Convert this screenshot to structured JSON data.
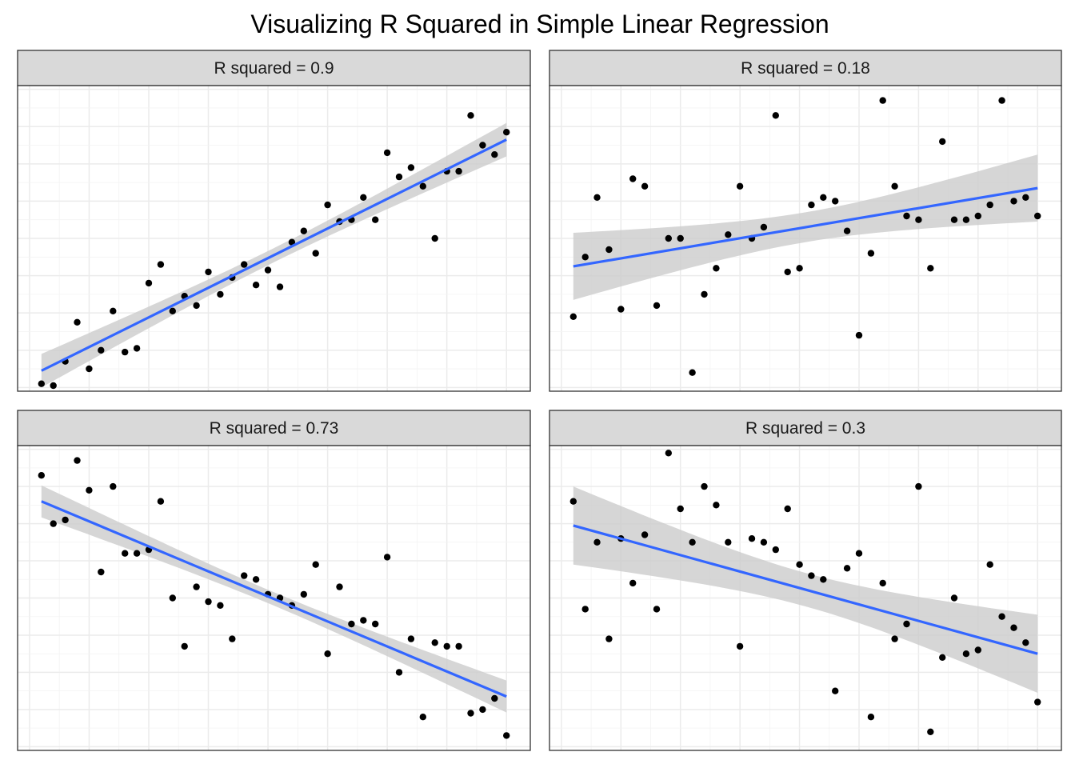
{
  "title": "Visualizing R Squared in Simple Linear Regression",
  "colors": {
    "point": "#000000",
    "line": "#3366ff",
    "ribbon": "#cccccc",
    "strip": "#d9d9d9",
    "grid": "#ebebeb",
    "border": "#333333"
  },
  "chart_data": [
    {
      "type": "scatter",
      "title": "R squared = 0.9",
      "xlabel": "",
      "ylabel": "",
      "xlim": [
        -1,
        42
      ],
      "ylim": [
        -1,
        81
      ],
      "grid": true,
      "show_axis_ticks": false,
      "x": [
        1,
        2,
        3,
        4,
        5,
        6,
        7,
        8,
        9,
        10,
        11,
        12,
        13,
        14,
        15,
        16,
        17,
        18,
        19,
        20,
        21,
        22,
        23,
        24,
        25,
        26,
        27,
        28,
        29,
        30,
        31,
        32,
        33,
        34,
        35,
        36,
        37,
        38,
        39,
        40
      ],
      "y": [
        1,
        0.5,
        7,
        17.5,
        5,
        10,
        20.5,
        9.5,
        10.5,
        28,
        33,
        20.5,
        24.5,
        22,
        31,
        25,
        29.5,
        33,
        27.5,
        31.5,
        27,
        39,
        42,
        36,
        49,
        44.5,
        45,
        51,
        45,
        63,
        56.5,
        59,
        54,
        40,
        58,
        58,
        73,
        65,
        62.5,
        68.5
      ],
      "fit": {
        "x": [
          1,
          40
        ],
        "y": [
          4.5,
          66.5
        ],
        "ci_halfwidth": [
          4.5,
          4.5
        ],
        "ci_halfwidth_mid": 1.9
      }
    },
    {
      "type": "scatter",
      "title": "R squared = 0.18",
      "xlabel": "",
      "ylabel": "",
      "xlim": [
        -1,
        42
      ],
      "ylim": [
        -1,
        81
      ],
      "grid": true,
      "show_axis_ticks": false,
      "x": [
        1,
        2,
        3,
        4,
        5,
        6,
        7,
        8,
        9,
        10,
        11,
        12,
        13,
        14,
        15,
        16,
        17,
        18,
        19,
        20,
        21,
        22,
        23,
        24,
        25,
        26,
        27,
        28,
        29,
        30,
        31,
        32,
        33,
        34,
        35,
        36,
        37,
        38,
        39,
        40
      ],
      "y": [
        19,
        35,
        51,
        37,
        21,
        56,
        54,
        22,
        40,
        40,
        4,
        25,
        32,
        41,
        54,
        40,
        43,
        73,
        31,
        32,
        49,
        51,
        50,
        42,
        14,
        36,
        77,
        54,
        46,
        45,
        32,
        66,
        45,
        45,
        46,
        49,
        77,
        50,
        51,
        46
      ],
      "fit": {
        "x": [
          1,
          40
        ],
        "y": [
          32.5,
          53.5
        ],
        "ci_halfwidth": [
          9,
          9
        ],
        "ci_halfwidth_mid": 4
      }
    },
    {
      "type": "scatter",
      "title": "R squared = 0.73",
      "xlabel": "",
      "ylabel": "",
      "xlim": [
        -1,
        42
      ],
      "ylim": [
        -1,
        81
      ],
      "grid": true,
      "show_axis_ticks": false,
      "x": [
        1,
        2,
        3,
        4,
        5,
        6,
        7,
        8,
        9,
        10,
        11,
        12,
        13,
        14,
        15,
        16,
        17,
        18,
        19,
        20,
        21,
        22,
        23,
        24,
        25,
        26,
        27,
        28,
        29,
        30,
        31,
        32,
        33,
        34,
        35,
        36,
        37,
        38,
        39,
        40
      ],
      "y": [
        73,
        60,
        61,
        77,
        69,
        47,
        70,
        52,
        52,
        53,
        66,
        40,
        27,
        43,
        39,
        38,
        29,
        46,
        45,
        41,
        40,
        38,
        41,
        49,
        25,
        43,
        33,
        34,
        33,
        51,
        20,
        29,
        8,
        28,
        27,
        27,
        9,
        10,
        13,
        3
      ],
      "fit": {
        "x": [
          1,
          40
        ],
        "y": [
          66,
          13.5
        ],
        "ci_halfwidth": [
          4.3,
          4.3
        ],
        "ci_halfwidth_mid": 1.8
      }
    },
    {
      "type": "scatter",
      "title": "R squared = 0.3",
      "xlabel": "",
      "ylabel": "",
      "xlim": [
        -1,
        42
      ],
      "ylim": [
        -1,
        81
      ],
      "grid": true,
      "show_axis_ticks": false,
      "x": [
        1,
        2,
        3,
        4,
        5,
        6,
        7,
        8,
        9,
        10,
        11,
        12,
        13,
        14,
        15,
        16,
        17,
        18,
        19,
        20,
        21,
        22,
        23,
        24,
        25,
        26,
        27,
        28,
        29,
        30,
        31,
        32,
        33,
        34,
        35,
        36,
        37,
        38,
        39,
        40
      ],
      "y": [
        66,
        37,
        55,
        29,
        56,
        44,
        57,
        37,
        79,
        64,
        55,
        70,
        65,
        55,
        27,
        56,
        55,
        53,
        64,
        49,
        46,
        45,
        15,
        48,
        52,
        8,
        44,
        29,
        33,
        70,
        4,
        24,
        40,
        25,
        26,
        49,
        35,
        32,
        28,
        12
      ],
      "fit": {
        "x": [
          1,
          40
        ],
        "y": [
          59.5,
          25
        ],
        "ci_halfwidth": [
          10.5,
          10.5
        ],
        "ci_halfwidth_mid": 4.5
      }
    }
  ]
}
